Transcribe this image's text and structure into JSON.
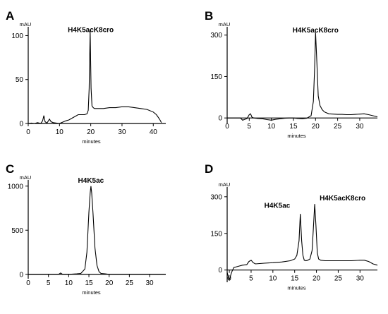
{
  "chart_data": [
    {
      "panel": "A",
      "type": "line",
      "unit_label": "mAU",
      "xlabel": "minutes",
      "xlim": [
        0,
        44
      ],
      "ylim": [
        0,
        110
      ],
      "xticks": [
        0,
        10,
        20,
        30,
        40
      ],
      "yticks": [
        0,
        50,
        100
      ],
      "annotations": [
        {
          "text": "H4K5acK8cro",
          "x": 20,
          "y": 104
        }
      ],
      "series": [
        {
          "x": [
            0,
            1,
            2,
            3,
            4,
            4.6,
            5,
            5.4,
            6,
            6.8,
            7.3,
            8,
            9,
            10,
            11,
            12,
            13,
            14,
            15,
            16,
            17,
            18,
            18.8,
            19.2,
            19.5,
            19.8,
            20.1,
            20.4,
            20.8,
            21.2,
            22,
            24,
            26,
            28,
            30,
            32,
            34,
            36,
            38,
            40,
            41,
            42,
            42.6
          ],
          "y": [
            0,
            0.5,
            0,
            1,
            0,
            3,
            9,
            2,
            0.5,
            5,
            2,
            1,
            0.5,
            0,
            1.5,
            3,
            4,
            6,
            8,
            10,
            10,
            10,
            11,
            15,
            40,
            106,
            40,
            20,
            18,
            17,
            17,
            17,
            18,
            18,
            19,
            19,
            18,
            17,
            16,
            13,
            10,
            5,
            1
          ]
        }
      ]
    },
    {
      "panel": "B",
      "type": "line",
      "unit_label": "mAU",
      "xlabel": "minutes",
      "xlim": [
        0,
        34
      ],
      "ylim": [
        -20,
        330
      ],
      "xticks": [
        0,
        5,
        10,
        15,
        20,
        25,
        30
      ],
      "yticks": [
        0,
        150,
        300
      ],
      "annotations": [
        {
          "text": "H4K5acK8cro",
          "x": 20,
          "y": 310
        }
      ],
      "series": [
        {
          "x": [
            0,
            2,
            3,
            3.5,
            4,
            4.5,
            5,
            5.3,
            5.6,
            6,
            7,
            8,
            9,
            10,
            11,
            12,
            13,
            14,
            15,
            16,
            17,
            18,
            19,
            19.5,
            19.8,
            20,
            20.3,
            20.6,
            21,
            21.5,
            22,
            23,
            24,
            25,
            26,
            27,
            28,
            29,
            30,
            31,
            32,
            33,
            34
          ],
          "y": [
            0,
            0,
            0,
            -8,
            -5,
            -2,
            12,
            15,
            3,
            0,
            -2,
            -3,
            -6,
            -8,
            -5,
            -3,
            -1,
            0,
            0,
            -2,
            -3,
            -1,
            8,
            60,
            180,
            310,
            200,
            80,
            45,
            30,
            22,
            15,
            14,
            13,
            13,
            12,
            12,
            13,
            14,
            15,
            12,
            8,
            4
          ]
        }
      ]
    },
    {
      "panel": "C",
      "type": "line",
      "unit_label": "mAU",
      "xlabel": "minutes",
      "xlim": [
        0,
        34
      ],
      "ylim": [
        -50,
        1070
      ],
      "xticks": [
        0,
        5,
        10,
        15,
        20,
        25,
        30
      ],
      "yticks": [
        0,
        500,
        1000
      ],
      "annotations": [
        {
          "text": "H4K5ac",
          "x": 15.5,
          "y": 1040
        }
      ],
      "series": [
        {
          "x": [
            0,
            5,
            7.5,
            8,
            8.5,
            10,
            12,
            13,
            14,
            14.5,
            15,
            15.3,
            15.5,
            15.7,
            16,
            16.5,
            17,
            17.5,
            18,
            19,
            20,
            22,
            25,
            30,
            34
          ],
          "y": [
            0,
            0,
            0,
            15,
            0,
            0,
            5,
            10,
            60,
            250,
            700,
            920,
            1000,
            920,
            700,
            300,
            100,
            30,
            10,
            5,
            0,
            0,
            0,
            0,
            0
          ]
        }
      ]
    },
    {
      "panel": "D",
      "type": "line",
      "unit_label": "mAU",
      "xlabel": "minutes",
      "xlim": [
        -0.5,
        34
      ],
      "ylim": [
        -50,
        340
      ],
      "xticks": [
        0,
        5,
        10,
        15,
        20,
        25,
        30
      ],
      "yticks": [
        0,
        150,
        300
      ],
      "annotations": [
        {
          "text": "H4K5ac",
          "x": 11,
          "y": 255
        },
        {
          "text": "H4K5acK8cro",
          "x": 26,
          "y": 285
        }
      ],
      "series": [
        {
          "x": [
            -0.5,
            0,
            0.5,
            1,
            2,
            3,
            4,
            4.5,
            5,
            5.5,
            6,
            8,
            10,
            12,
            14,
            15,
            15.5,
            16,
            16.3,
            16.6,
            16.9,
            17.2,
            17.6,
            18,
            18.5,
            19,
            19.3,
            19.6,
            19.9,
            20.2,
            20.5,
            21,
            22,
            24,
            26,
            28,
            30,
            31,
            32,
            33,
            34
          ],
          "y": [
            -10,
            -40,
            -10,
            10,
            15,
            20,
            22,
            35,
            40,
            30,
            25,
            28,
            30,
            33,
            38,
            45,
            60,
            120,
            230,
            120,
            60,
            40,
            38,
            40,
            45,
            80,
            170,
            270,
            180,
            70,
            45,
            40,
            38,
            38,
            38,
            38,
            40,
            40,
            35,
            25,
            20
          ]
        }
      ]
    }
  ]
}
